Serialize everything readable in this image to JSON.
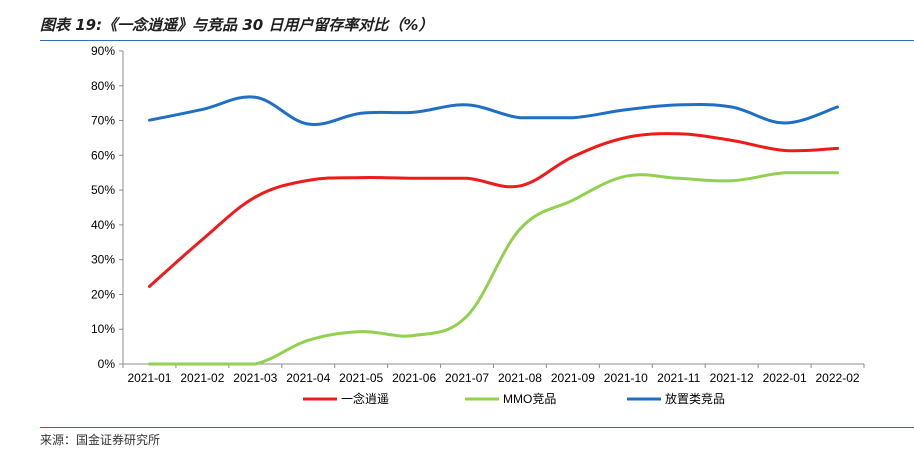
{
  "caption": "图表 19:《一念逍遥》与竞品 30 日用户留存率对比（%）",
  "source": "来源：国金证券研究所",
  "colors": {
    "rule": "#2b6fb6"
  },
  "chart_data": {
    "type": "line",
    "categories": [
      "2021-01",
      "2021-02",
      "2021-03",
      "2021-04",
      "2021-05",
      "2021-06",
      "2021-07",
      "2021-08",
      "2021-09",
      "2021-10",
      "2021-11",
      "2021-12",
      "2022-01",
      "2022-02"
    ],
    "ylim": [
      0,
      90
    ],
    "yticks": [
      0,
      10,
      20,
      30,
      40,
      50,
      60,
      70,
      80,
      90
    ],
    "ytick_labels": [
      "0%",
      "10%",
      "20%",
      "30%",
      "40%",
      "50%",
      "60%",
      "70%",
      "80%",
      "90%"
    ],
    "grid": false,
    "legend_position": "bottom",
    "series": [
      {
        "name": "一念逍遥",
        "color": "#ee1b1b",
        "values": [
          22.3,
          35.8,
          48.0,
          52.8,
          53.6,
          53.4,
          53.4,
          51.2,
          59.6,
          65.1,
          66.2,
          64.3,
          61.4,
          62.0
        ]
      },
      {
        "name": "MMO竞品",
        "color": "#92d050",
        "values": [
          0,
          0,
          0,
          6.8,
          9.3,
          8.2,
          13.8,
          38.8,
          47.1,
          54.0,
          53.4,
          52.7,
          55.0,
          55.0
        ]
      },
      {
        "name": "放置类竞品",
        "color": "#1f6fc4",
        "values": [
          70.1,
          73.2,
          76.7,
          69.0,
          72.1,
          72.4,
          74.5,
          70.8,
          70.8,
          73.1,
          74.5,
          73.9,
          69.3,
          73.9
        ]
      }
    ]
  }
}
